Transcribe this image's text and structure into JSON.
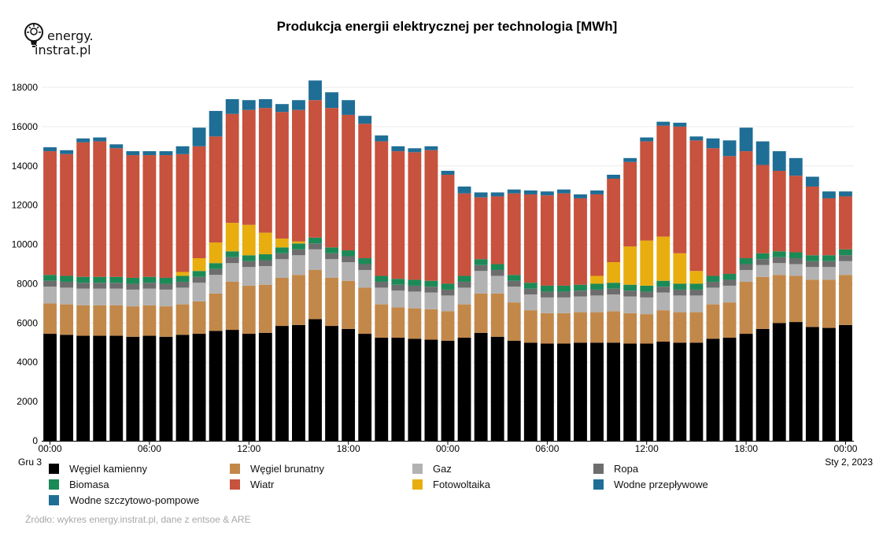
{
  "logo": {
    "line1": "energy.",
    "line2": "instrat.pl",
    "brand": "energy.instrat.pl"
  },
  "source": "Źródło: wykres energy.instrat.pl, dane z entsoe & ARE",
  "chart_data": {
    "type": "bar",
    "stacked": true,
    "title": "Produkcja energii elektrycznej per technologia [MWh]",
    "xlabel": "",
    "ylabel": "",
    "ylim": [
      0,
      18000
    ],
    "yticks": [
      0,
      2000,
      4000,
      6000,
      8000,
      10000,
      12000,
      14000,
      16000,
      18000
    ],
    "grid": true,
    "legend_position": "bottom",
    "x_ticks": [
      {
        "index": 0,
        "label": "00:00"
      },
      {
        "index": 6,
        "label": "06:00"
      },
      {
        "index": 12,
        "label": "12:00"
      },
      {
        "index": 18,
        "label": "18:00"
      },
      {
        "index": 24,
        "label": "00:00"
      },
      {
        "index": 30,
        "label": "06:00"
      },
      {
        "index": 36,
        "label": "12:00"
      },
      {
        "index": 42,
        "label": "18:00"
      },
      {
        "index": 48,
        "label": "00:00"
      }
    ],
    "date_start_label": "Gru 3",
    "date_end_label": "Sty 2, 2023",
    "categories": [
      "0",
      "1",
      "2",
      "3",
      "4",
      "5",
      "6",
      "7",
      "8",
      "9",
      "10",
      "11",
      "12",
      "13",
      "14",
      "15",
      "16",
      "17",
      "18",
      "19",
      "20",
      "21",
      "22",
      "23",
      "24",
      "25",
      "26",
      "27",
      "28",
      "29",
      "30",
      "31",
      "32",
      "33",
      "34",
      "35",
      "36",
      "37",
      "38",
      "39",
      "40",
      "41",
      "42",
      "43",
      "44",
      "45",
      "46",
      "47",
      "48"
    ],
    "series": [
      {
        "name": "Węgiel kamienny",
        "color": "#000000",
        "values": [
          5450,
          5400,
          5350,
          5350,
          5350,
          5300,
          5350,
          5300,
          5400,
          5450,
          5600,
          5650,
          5450,
          5500,
          5850,
          5900,
          6200,
          5850,
          5700,
          5450,
          5250,
          5250,
          5200,
          5150,
          5100,
          5250,
          5500,
          5300,
          5100,
          5000,
          4950,
          4950,
          5000,
          5000,
          5000,
          4950,
          4950,
          5050,
          5000,
          5000,
          5200,
          5250,
          5450,
          5700,
          6000,
          6050,
          5800,
          5750,
          5900
        ]
      },
      {
        "name": "Węgiel brunatny",
        "color": "#c2884a",
        "values": [
          1550,
          1550,
          1550,
          1550,
          1550,
          1550,
          1550,
          1550,
          1550,
          1650,
          1900,
          2450,
          2450,
          2450,
          2450,
          2550,
          2500,
          2450,
          2450,
          2350,
          1700,
          1550,
          1550,
          1550,
          1500,
          1700,
          2000,
          2200,
          1950,
          1650,
          1550,
          1550,
          1550,
          1550,
          1600,
          1550,
          1500,
          1600,
          1550,
          1550,
          1750,
          1800,
          2650,
          2650,
          2450,
          2350,
          2400,
          2450,
          2550
        ]
      },
      {
        "name": "Gaz",
        "color": "#b2b2b2",
        "values": [
          850,
          850,
          850,
          850,
          850,
          850,
          850,
          850,
          850,
          950,
          950,
          950,
          950,
          950,
          950,
          1000,
          1050,
          950,
          950,
          900,
          850,
          850,
          850,
          850,
          800,
          850,
          1150,
          900,
          800,
          800,
          800,
          800,
          800,
          850,
          850,
          850,
          850,
          900,
          850,
          850,
          850,
          850,
          600,
          600,
          600,
          600,
          650,
          650,
          700
        ]
      },
      {
        "name": "Ropa",
        "color": "#6d6d6d",
        "values": [
          300,
          300,
          300,
          300,
          300,
          300,
          300,
          300,
          300,
          300,
          300,
          300,
          300,
          300,
          300,
          300,
          300,
          300,
          300,
          300,
          300,
          300,
          300,
          300,
          300,
          300,
          300,
          300,
          300,
          300,
          300,
          300,
          300,
          300,
          300,
          300,
          300,
          300,
          300,
          300,
          300,
          300,
          300,
          300,
          300,
          300,
          300,
          300,
          300
        ]
      },
      {
        "name": "Biomasa",
        "color": "#1b8a57",
        "values": [
          300,
          300,
          300,
          300,
          300,
          300,
          300,
          300,
          300,
          300,
          300,
          300,
          300,
          300,
          300,
          300,
          300,
          300,
          300,
          300,
          300,
          300,
          300,
          300,
          300,
          300,
          300,
          300,
          300,
          300,
          300,
          300,
          300,
          300,
          300,
          300,
          300,
          300,
          300,
          300,
          300,
          300,
          300,
          300,
          300,
          300,
          300,
          300,
          300
        ]
      },
      {
        "name": "Fotowoltaika",
        "color": "#e8ae10",
        "values": [
          0,
          0,
          0,
          0,
          0,
          0,
          0,
          0,
          200,
          650,
          1050,
          1450,
          1550,
          1100,
          450,
          100,
          0,
          0,
          0,
          0,
          0,
          0,
          0,
          0,
          0,
          0,
          0,
          0,
          0,
          0,
          0,
          0,
          0,
          400,
          1050,
          1950,
          2300,
          2250,
          1550,
          650,
          0,
          0,
          0,
          0,
          0,
          0,
          0,
          0,
          0
        ]
      },
      {
        "name": "Wiatr",
        "color": "#c7523d",
        "values": [
          6300,
          6200,
          6850,
          6900,
          6550,
          6250,
          6200,
          6250,
          6000,
          5700,
          5400,
          5550,
          5850,
          6350,
          6450,
          6700,
          7000,
          7100,
          6900,
          6850,
          6850,
          6500,
          6500,
          6650,
          5550,
          4200,
          3150,
          3450,
          4150,
          4500,
          4600,
          4700,
          4400,
          4150,
          4250,
          4300,
          5050,
          5650,
          6450,
          6650,
          6500,
          6000,
          5450,
          4500,
          4100,
          3900,
          3500,
          2900,
          2700
        ]
      },
      {
        "name": "Wodne przepływowe",
        "color": "#1f6e96",
        "values": [
          200,
          200,
          200,
          200,
          200,
          200,
          200,
          200,
          400,
          950,
          1300,
          750,
          500,
          450,
          400,
          500,
          1000,
          800,
          750,
          400,
          300,
          250,
          200,
          200,
          200,
          350,
          250,
          200,
          200,
          200,
          200,
          200,
          200,
          200,
          200,
          200,
          200,
          200,
          200,
          200,
          500,
          800,
          1200,
          1200,
          1000,
          900,
          500,
          350,
          250
        ]
      },
      {
        "name": "Wodne szczytowo-pompowe",
        "color": "#1f6e96",
        "values": [
          0,
          0,
          0,
          0,
          0,
          0,
          0,
          0,
          0,
          0,
          0,
          0,
          0,
          0,
          0,
          0,
          0,
          0,
          0,
          0,
          0,
          0,
          0,
          0,
          0,
          0,
          0,
          0,
          0,
          0,
          0,
          0,
          0,
          0,
          0,
          0,
          0,
          0,
          0,
          0,
          0,
          0,
          0,
          0,
          0,
          0,
          0,
          0,
          0
        ]
      }
    ],
    "legend_order": [
      "Węgiel kamienny",
      "Węgiel brunatny",
      "Gaz",
      "Ropa",
      "Biomasa",
      "Wiatr",
      "Fotowoltaika",
      "Wodne przepływowe",
      "Wodne szczytowo-pompowe"
    ]
  }
}
